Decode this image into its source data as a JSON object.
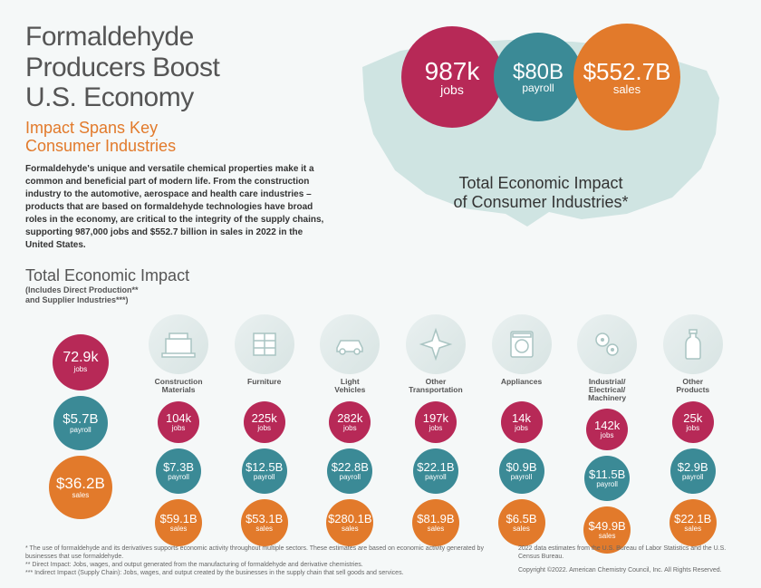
{
  "title": "Formaldehyde\nProducers Boost\nU.S. Economy",
  "subtitle": "Impact Spans Key\nConsumer Industries",
  "body": "Formaldehyde's unique and versatile chemical properties make it a common and beneficial part of modern life. From the construction industry to the automotive, aerospace and health care industries – products that are based on formaldehyde technologies have broad roles in the economy, are critical to the integrity of the supply chains, supporting 987,000 jobs and $552.7 billion in sales in 2022 in the United States.",
  "hero": {
    "caption": "Total Economic Impact\nof Consumer Industries*",
    "circles": [
      {
        "value": "987k",
        "label": "jobs",
        "color": "#b72957",
        "size": 112,
        "fontSize": 28
      },
      {
        "value": "$80B",
        "label": "payroll",
        "color": "#3b8a96",
        "size": 98,
        "fontSize": 24
      },
      {
        "value": "$552.7B",
        "label": "sales",
        "color": "#e27a2b",
        "size": 118,
        "fontSize": 26
      }
    ]
  },
  "section": {
    "title": "Total Economic Impact",
    "sub": "(Includes Direct Production**\nand Supplier Industries***)"
  },
  "total_col": {
    "jobs": {
      "v": "72.9k",
      "l": "jobs",
      "size": 62,
      "font": 16
    },
    "payroll": {
      "v": "$5.7B",
      "l": "payroll",
      "size": 60,
      "font": 15
    },
    "sales": {
      "v": "$36.2B",
      "l": "sales",
      "size": 70,
      "font": 17
    }
  },
  "industries": [
    {
      "name": "Construction\nMaterials",
      "icon": "construction",
      "jobs": "104k",
      "payroll": "$7.3B",
      "sales": "$59.1B"
    },
    {
      "name": "Furniture",
      "icon": "furniture",
      "jobs": "225k",
      "payroll": "$12.5B",
      "sales": "$53.1B"
    },
    {
      "name": "Light\nVehicles",
      "icon": "car",
      "jobs": "282k",
      "payroll": "$22.8B",
      "sales": "$280.1B"
    },
    {
      "name": "Other\nTransportation",
      "icon": "plane",
      "jobs": "197k",
      "payroll": "$22.1B",
      "sales": "$81.9B"
    },
    {
      "name": "Appliances",
      "icon": "washer",
      "jobs": "14k",
      "payroll": "$0.9B",
      "sales": "$6.5B"
    },
    {
      "name": "Industrial/\nElectrical/\nMachinery",
      "icon": "gears",
      "jobs": "142k",
      "payroll": "$11.5B",
      "sales": "$49.9B"
    },
    {
      "name": "Other\nProducts",
      "icon": "bottle",
      "jobs": "25k",
      "payroll": "$2.9B",
      "sales": "$22.1B"
    }
  ],
  "statStyle": {
    "jobs": {
      "size": 46,
      "font": 13
    },
    "payroll": {
      "size": 50,
      "font": 13
    },
    "sales": {
      "size": 52,
      "font": 13
    }
  },
  "footnotes": {
    "f1": "* The use of formaldehyde and its derivatives supports economic activity throughout multiple sectors. These estimates are based on economic activity generated by businesses that use formaldehyde.",
    "f2": "** Direct Impact: Jobs, wages, and output generated from the manufacturing of formaldehyde and derivative chemistries.",
    "f3": "*** Indirect Impact (Supply Chain): Jobs, wages, and output created by the businesses in the supply chain that sell goods and services.",
    "src": "2022 data estimates from the U.S. Bureau of Labor Statistics and the U.S. Census Bureau.",
    "copy": "Copyright ©2022. American Chemistry Council, Inc. All Rights Reserved."
  },
  "colors": {
    "jobs": "#b72957",
    "payroll": "#3b8a96",
    "sales": "#e27a2b",
    "map": "#cfe4e2",
    "orange": "#e27a2b",
    "gray": "#555"
  }
}
